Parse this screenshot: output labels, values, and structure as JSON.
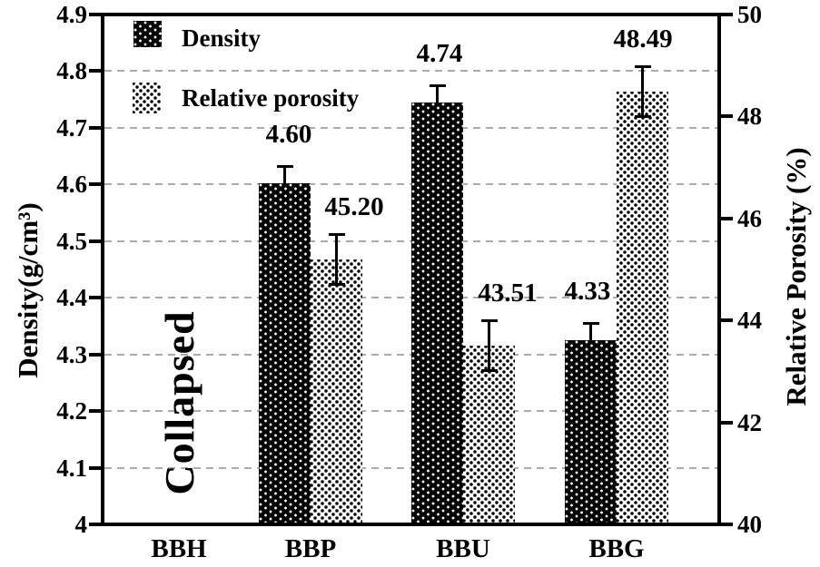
{
  "chart_data": {
    "type": "bar",
    "title": "",
    "categories": [
      "BBH",
      "BBP",
      "BBU",
      "BBG"
    ],
    "series": [
      {
        "name": "Density",
        "axis": "left",
        "pattern": "density",
        "values": [
          null,
          4.602,
          4.745,
          4.325
        ],
        "value_labels": [
          null,
          "4.60",
          "4.74",
          "4.33"
        ],
        "error_plus": [
          null,
          0.03,
          0.03,
          0.03
        ],
        "error_minus": [
          null,
          0.03,
          0.03,
          0.03
        ]
      },
      {
        "name": "Relative porosity",
        "axis": "right",
        "pattern": "porosity",
        "values": [
          null,
          45.2,
          43.51,
          48.49
        ],
        "value_labels": [
          null,
          "45.20",
          "43.51",
          "48.49"
        ],
        "error_plus": [
          null,
          0.5,
          0.5,
          0.5
        ],
        "error_minus": [
          null,
          0.5,
          0.5,
          0.5
        ]
      }
    ],
    "left_axis": {
      "label": "Density(g/cm³)",
      "min": 4,
      "max": 4.9,
      "tick_values": [
        4.9,
        4.8,
        4.7,
        4.6,
        4.5,
        4.4,
        4.3,
        4.2,
        4.1,
        4
      ],
      "tick_labels": [
        "4.9",
        "4.8",
        "4.7",
        "4.6",
        "4.5",
        "4.4",
        "4.3",
        "4.2",
        "4.1",
        "4"
      ]
    },
    "right_axis": {
      "label": "Relative Porosity (%)",
      "min": 40,
      "max": 50,
      "tick_values": [
        50,
        48,
        46,
        44,
        42,
        40
      ],
      "tick_labels": [
        "50",
        "48",
        "46",
        "44",
        "42",
        "40"
      ]
    },
    "gridlines": {
      "values": [
        4.8,
        4.7,
        4.6,
        4.5,
        4.4,
        4.3,
        4.2,
        4.1
      ],
      "style": "dashed",
      "color": "#ababab"
    },
    "legend": [
      {
        "label": "Density"
      },
      {
        "label": "Relative porosity"
      }
    ],
    "annotation": {
      "text": "Collapsed",
      "category": "BBH"
    },
    "colors": {
      "bar_dark": "#000000",
      "bar_light": "#ffffff",
      "dot_dark": "#000000",
      "dot_light": "#ffffff",
      "grid": "#ababab",
      "text": "#000000",
      "background": "#ffffff"
    }
  }
}
